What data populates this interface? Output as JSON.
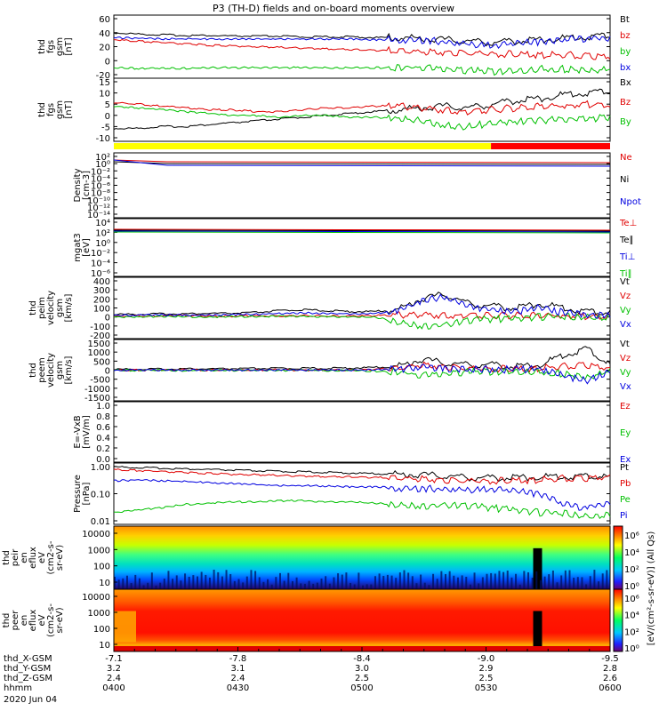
{
  "title": "P3 (TH-D) fields and on-board moments overview",
  "chart_data": {
    "type": "line",
    "title": "P3 (TH-D) fields and on-board moments overview",
    "time_axis": {
      "ticks": [
        "0400",
        "0430",
        "0500",
        "0530",
        "0600"
      ],
      "date": "2020 Jun 04",
      "orbit_labels": [
        "thd_X-GSM",
        "thd_Y-GSM",
        "thd_Z-GSM",
        "hhmm"
      ],
      "x_gsm": [
        "-7.1",
        "-7.8",
        "-8.4",
        "-9.0",
        "-9.5"
      ],
      "y_gsm": [
        "3.2",
        "3.1",
        "3.0",
        "2.9",
        "2.8"
      ],
      "z_gsm": [
        "2.4",
        "2.4",
        "2.5",
        "2.5",
        "2.6"
      ]
    },
    "panels": [
      {
        "id": "fgs-btot",
        "ylabel": [
          "thd",
          "fgs",
          "gsm",
          "[nT]"
        ],
        "ylim": [
          -20,
          60
        ],
        "yticks": [
          "60",
          "40",
          "20",
          "0",
          "-20"
        ],
        "series": [
          {
            "name": "Bt",
            "color": "#000000",
            "values": [
              40,
              38,
              37,
              36,
              36,
              35,
              35,
              35,
              34,
              34,
              34,
              33,
              33,
              32,
              30,
              28,
              26,
              28,
              30,
              32,
              34,
              36
            ]
          },
          {
            "name": "bz",
            "color": "#e00000",
            "values": [
              30,
              28,
              26,
              24,
              22,
              21,
              20,
              19,
              18,
              17,
              16,
              15,
              14,
              13,
              12,
              11,
              10,
              9,
              8,
              8,
              7,
              6
            ]
          },
          {
            "name": "by",
            "color": "#00c000",
            "values": [
              -10,
              -11,
              -11,
              -11,
              -10,
              -10,
              -10,
              -10,
              -10,
              -10,
              -10,
              -10,
              -10,
              -10,
              -12,
              -14,
              -16,
              -14,
              -12,
              -12,
              -14,
              -13
            ]
          },
          {
            "name": "bx",
            "color": "#0000e0",
            "values": [
              33,
              32,
              31,
              31,
              31,
              31,
              31,
              31,
              31,
              31,
              31,
              30,
              30,
              29,
              27,
              24,
              22,
              24,
              27,
              30,
              32,
              33
            ]
          }
        ]
      },
      {
        "id": "fgs-components",
        "ylabel": [
          "thd",
          "fgs",
          "gsm",
          "[nT]"
        ],
        "ylim": [
          -15,
          15
        ],
        "yticks": [
          "15",
          "10",
          "5",
          "0",
          "-5",
          "-10"
        ],
        "series": [
          {
            "name": "Bx",
            "color": "#000000",
            "values": [
              -10,
              -10,
              -9,
              -9,
              -8,
              -7,
              -6,
              -5,
              -4,
              -3,
              -2,
              -1,
              0,
              1,
              2,
              1,
              3,
              5,
              6,
              8,
              9,
              10
            ]
          },
          {
            "name": "Bz",
            "color": "#e00000",
            "values": [
              4,
              3,
              2,
              1,
              0,
              0,
              -1,
              -1,
              0,
              1,
              1,
              2,
              2,
              1,
              0,
              -1,
              0,
              1,
              2,
              2,
              3,
              3
            ]
          },
          {
            "name": "By",
            "color": "#00c000",
            "values": [
              2,
              1,
              0,
              -1,
              -2,
              -3,
              -3,
              -4,
              -3,
              -3,
              -4,
              -4,
              -5,
              -6,
              -8,
              -9,
              -7,
              -6,
              -6,
              -5,
              -5,
              -4
            ]
          }
        ]
      },
      {
        "id": "mode-bar",
        "segments": [
          {
            "from": 0,
            "to": 0.76,
            "color": "#ffff00"
          },
          {
            "from": 0.76,
            "to": 1.0,
            "color": "#ff0000"
          }
        ]
      },
      {
        "id": "density",
        "ylabel": [
          "Density",
          "[cm-3]"
        ],
        "scale": "log",
        "yticks": [
          "10²",
          "10⁰",
          "10⁻²",
          "10⁻⁴",
          "10⁻⁶",
          "10⁻⁸",
          "10⁻¹⁰",
          "10⁻¹²",
          "10⁻¹⁴"
        ],
        "series": [
          {
            "name": "Ne",
            "color": "#e00000"
          },
          {
            "name": "Ni",
            "color": "#000000"
          },
          {
            "name": "Npot",
            "color": "#0000e0"
          }
        ]
      },
      {
        "id": "temperature",
        "ylabel": [
          "mgat3",
          "[eV]"
        ],
        "scale": "log",
        "yticks": [
          "10⁴",
          "10²",
          "10⁰",
          "10⁻²",
          "10⁻⁴",
          "10⁻⁶"
        ],
        "series": [
          {
            "name": "Te⊥",
            "color": "#e00000"
          },
          {
            "name": "Te∥",
            "color": "#000000"
          },
          {
            "name": "Ti⊥",
            "color": "#0000e0"
          },
          {
            "name": "Ti∥",
            "color": "#00c000"
          }
        ]
      },
      {
        "id": "ion-velocity",
        "ylabel": [
          "thd",
          "peim",
          "velocity",
          "gsm",
          "[km/s]"
        ],
        "ylim": [
          -200,
          400
        ],
        "yticks": [
          "400",
          "300",
          "200",
          "100",
          "0",
          "-100",
          "-200"
        ],
        "series": [
          {
            "name": "Vt",
            "color": "#000000",
            "values": [
              30,
              30,
              35,
              35,
              40,
              40,
              50,
              70,
              80,
              70,
              60,
              60,
              80,
              200,
              250,
              150,
              120,
              100,
              150,
              100,
              60,
              50
            ]
          },
          {
            "name": "Vz",
            "color": "#e00000",
            "values": [
              10,
              10,
              10,
              15,
              10,
              10,
              15,
              10,
              15,
              10,
              10,
              15,
              20,
              30,
              20,
              20,
              15,
              20,
              20,
              10,
              10,
              15
            ]
          },
          {
            "name": "Vy",
            "color": "#00c000",
            "values": [
              0,
              0,
              5,
              5,
              0,
              5,
              5,
              10,
              5,
              5,
              0,
              0,
              -50,
              -100,
              -80,
              -40,
              -20,
              -20,
              0,
              10,
              5,
              0
            ]
          },
          {
            "name": "Vx",
            "color": "#0000e0",
            "values": [
              20,
              20,
              25,
              20,
              20,
              25,
              30,
              40,
              45,
              40,
              35,
              40,
              60,
              180,
              220,
              120,
              80,
              60,
              100,
              50,
              30,
              20
            ]
          }
        ]
      },
      {
        "id": "electron-velocity",
        "ylabel": [
          "thd",
          "peem",
          "velocity",
          "gsm",
          "[km/s]"
        ],
        "ylim": [
          -1500,
          1500
        ],
        "yticks": [
          "1500",
          "1000",
          "500",
          "0",
          "-500",
          "-1000",
          "-1500"
        ],
        "series": [
          {
            "name": "Vt",
            "color": "#000000",
            "values": [
              50,
              60,
              60,
              80,
              70,
              80,
              90,
              100,
              100,
              100,
              120,
              150,
              200,
              600,
              400,
              300,
              300,
              200,
              300,
              800,
              1200,
              300
            ]
          },
          {
            "name": "Vz",
            "color": "#e00000",
            "values": [
              0,
              10,
              0,
              20,
              0,
              10,
              0,
              30,
              0,
              20,
              0,
              50,
              100,
              300,
              200,
              100,
              100,
              50,
              100,
              200,
              300,
              100
            ]
          },
          {
            "name": "Vy",
            "color": "#00c000",
            "values": [
              0,
              -10,
              0,
              -20,
              0,
              -10,
              0,
              -20,
              0,
              -20,
              0,
              -50,
              -100,
              -300,
              -200,
              -100,
              -100,
              -50,
              -100,
              -200,
              -400,
              -100
            ]
          },
          {
            "name": "Vx",
            "color": "#0000e0",
            "values": [
              0,
              10,
              0,
              10,
              0,
              10,
              0,
              20,
              0,
              10,
              0,
              30,
              50,
              200,
              100,
              50,
              50,
              30,
              80,
              -300,
              -600,
              -100
            ]
          }
        ]
      },
      {
        "id": "efield",
        "ylabel": [
          "E=-VxB",
          "[mV/m]"
        ],
        "ylim": [
          0,
          1.0
        ],
        "yticks": [
          "1.0",
          "0.8",
          "0.6",
          "0.4",
          "0.2",
          "0.0"
        ],
        "series": [
          {
            "name": "Ez",
            "color": "#e00000"
          },
          {
            "name": "Ey",
            "color": "#00c000"
          },
          {
            "name": "Ex",
            "color": "#0000e0"
          }
        ]
      },
      {
        "id": "pressure",
        "ylabel": [
          "Pressure",
          "[nPa]"
        ],
        "scale": "log",
        "yticks": [
          "1.00",
          "0.10",
          "0.01"
        ],
        "series": [
          {
            "name": "Pt",
            "color": "#000000",
            "values": [
              0.98,
              0.92,
              0.88,
              0.82,
              0.78,
              0.74,
              0.7,
              0.67,
              0.64,
              0.61,
              0.58,
              0.55,
              0.52,
              0.5,
              0.45,
              0.4,
              0.38,
              0.4,
              0.42,
              0.42,
              0.44,
              0.43
            ]
          },
          {
            "name": "Pb",
            "color": "#e00000",
            "values": [
              0.78,
              0.72,
              0.66,
              0.6,
              0.56,
              0.52,
              0.5,
              0.47,
              0.45,
              0.43,
              0.42,
              0.4,
              0.38,
              0.36,
              0.32,
              0.3,
              0.3,
              0.3,
              0.32,
              0.36,
              0.38,
              0.42
            ]
          },
          {
            "name": "Pe",
            "color": "#00c000",
            "values": [
              0.02,
              0.025,
              0.03,
              0.04,
              0.045,
              0.05,
              0.05,
              0.055,
              0.055,
              0.05,
              0.05,
              0.045,
              0.04,
              0.035,
              0.04,
              0.035,
              0.03,
              0.025,
              0.02,
              0.02,
              0.015,
              0.018
            ]
          },
          {
            "name": "Pi",
            "color": "#0000e0",
            "values": [
              0.3,
              0.32,
              0.3,
              0.28,
              0.26,
              0.24,
              0.22,
              0.2,
              0.2,
              0.19,
              0.18,
              0.18,
              0.16,
              0.15,
              0.15,
              0.14,
              0.15,
              0.12,
              0.1,
              0.04,
              0.03,
              0.05
            ]
          }
        ]
      },
      {
        "id": "ion-spectrogram",
        "ylabel": [
          "thd",
          "peir",
          "en",
          "eflux",
          "eV",
          "(cm2-s-",
          "sr-eV)"
        ],
        "yticks": [
          "10000",
          "1000",
          "100",
          "10"
        ],
        "type": "heatmap"
      },
      {
        "id": "electron-spectrogram",
        "ylabel": [
          "thd",
          "peer",
          "en",
          "eflux",
          "eV",
          "(cm2-s-",
          "sr-eV)"
        ],
        "yticks": [
          "10000",
          "1000",
          "100",
          "10"
        ],
        "type": "heatmap"
      }
    ],
    "colorbar": {
      "label": "[eV/(cm²-s-sr-eV)] (All Qs)",
      "ion_ticks": [
        "10⁶",
        "10⁴",
        "10²",
        "10⁰"
      ],
      "electron_ticks": [
        "10⁶",
        "10⁴",
        "10²",
        "10⁰"
      ]
    }
  }
}
